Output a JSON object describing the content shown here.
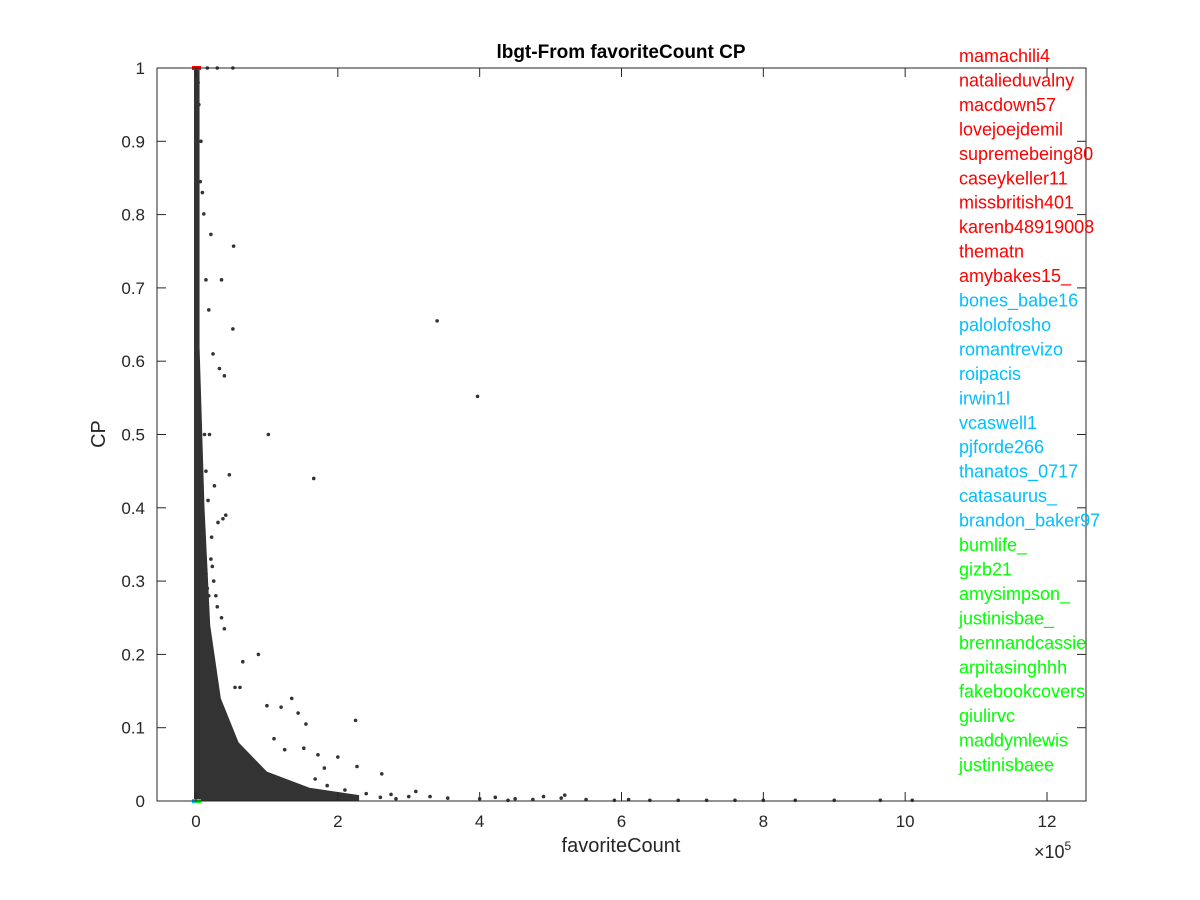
{
  "chart_data": {
    "type": "scatter",
    "title": "lbgt-From favoriteCount CP",
    "xlabel": "favoriteCount",
    "ylabel": "CP",
    "x_multiplier_label": "×10",
    "x_multiplier_exponent": "5",
    "xlim": [
      -55000,
      1255000
    ],
    "ylim": [
      0,
      1
    ],
    "x_ticks": [
      0,
      200000,
      400000,
      600000,
      800000,
      1000000,
      1200000
    ],
    "x_tick_labels": [
      "0",
      "2",
      "4",
      "6",
      "8",
      "10",
      "12"
    ],
    "y_ticks": [
      0,
      0.1,
      0.2,
      0.3,
      0.4,
      0.5,
      0.6,
      0.7,
      0.8,
      0.9,
      1
    ],
    "y_tick_labels": [
      "0",
      "0.1",
      "0.2",
      "0.3",
      "0.4",
      "0.5",
      "0.6",
      "0.7",
      "0.8",
      "0.9",
      "1"
    ],
    "grid": false,
    "marker_color": "#333333",
    "highlight_colors": {
      "top": "#ff0000",
      "middle": "#00bfff",
      "bottom": "#00ff00"
    },
    "series": [
      {
        "points": [
          [
            340000,
            0.655
          ],
          [
            397000,
            0.552
          ],
          [
            102000,
            0.5
          ],
          [
            166000,
            0.44
          ],
          [
            53000,
            0.757
          ],
          [
            36000,
            0.711
          ],
          [
            52000,
            0.644
          ],
          [
            21000,
            0.773
          ],
          [
            11000,
            0.801
          ],
          [
            14000,
            0.711
          ],
          [
            6000,
            0.845
          ],
          [
            7000,
            0.9
          ],
          [
            4000,
            0.95
          ],
          [
            3000,
            0.98
          ],
          [
            52000,
            1.0
          ],
          [
            30000,
            1.0
          ],
          [
            16000,
            1.0
          ],
          [
            9000,
            0.83
          ],
          [
            18000,
            0.67
          ],
          [
            24000,
            0.61
          ],
          [
            33000,
            0.59
          ],
          [
            40000,
            0.58
          ],
          [
            19000,
            0.5
          ],
          [
            12000,
            0.5
          ],
          [
            47000,
            0.445
          ],
          [
            42000,
            0.39
          ],
          [
            38000,
            0.385
          ],
          [
            26000,
            0.43
          ],
          [
            31000,
            0.38
          ],
          [
            22000,
            0.36
          ],
          [
            14000,
            0.45
          ],
          [
            17000,
            0.41
          ],
          [
            225000,
            0.11
          ],
          [
            155000,
            0.105
          ],
          [
            262000,
            0.037
          ],
          [
            227000,
            0.047
          ],
          [
            200000,
            0.06
          ],
          [
            135000,
            0.14
          ],
          [
            144000,
            0.12
          ],
          [
            120000,
            0.128
          ],
          [
            100000,
            0.13
          ],
          [
            88000,
            0.2
          ],
          [
            66000,
            0.19
          ],
          [
            55000,
            0.155
          ],
          [
            62000,
            0.155
          ],
          [
            40000,
            0.235
          ],
          [
            36000,
            0.25
          ],
          [
            30000,
            0.265
          ],
          [
            28000,
            0.28
          ],
          [
            25000,
            0.3
          ],
          [
            23000,
            0.32
          ],
          [
            21000,
            0.33
          ],
          [
            18000,
            0.28
          ],
          [
            16000,
            0.29
          ],
          [
            14000,
            0.31
          ],
          [
            13000,
            0.33
          ],
          [
            110000,
            0.085
          ],
          [
            125000,
            0.07
          ],
          [
            152000,
            0.072
          ],
          [
            172000,
            0.063
          ],
          [
            181000,
            0.045
          ],
          [
            168000,
            0.03
          ],
          [
            185000,
            0.021
          ],
          [
            210000,
            0.015
          ],
          [
            240000,
            0.01
          ],
          [
            275000,
            0.009
          ],
          [
            310000,
            0.013
          ],
          [
            330000,
            0.006
          ],
          [
            355000,
            0.004
          ],
          [
            400000,
            0.003
          ],
          [
            422000,
            0.005
          ],
          [
            450000,
            0.003
          ],
          [
            475000,
            0.002
          ],
          [
            490000,
            0.006
          ],
          [
            515000,
            0.004
          ],
          [
            550000,
            0.002
          ],
          [
            590000,
            0.001
          ],
          [
            610000,
            0.002
          ],
          [
            640000,
            0.001
          ],
          [
            680000,
            0.001
          ],
          [
            720000,
            0.001
          ],
          [
            760000,
            0.001
          ],
          [
            800000,
            0.001
          ],
          [
            845000,
            0.001
          ],
          [
            900000,
            0.001
          ],
          [
            965000,
            0.001
          ],
          [
            1010000,
            0.001
          ],
          [
            440000,
            0.001
          ],
          [
            520000,
            0.008
          ],
          [
            300000,
            0.006
          ],
          [
            282000,
            0.003
          ],
          [
            260000,
            0.005
          ]
        ]
      }
    ],
    "highlighted_users": [
      {
        "name": "mamachili4",
        "color": "#ff0000"
      },
      {
        "name": "natalieduvalny",
        "color": "#ff0000"
      },
      {
        "name": "macdown57",
        "color": "#ff0000"
      },
      {
        "name": "lovejoejdemil",
        "color": "#ff0000"
      },
      {
        "name": "supremebeing80",
        "color": "#ff0000"
      },
      {
        "name": "caseykeller11",
        "color": "#ff0000"
      },
      {
        "name": "missbritish401",
        "color": "#ff0000"
      },
      {
        "name": "karenb48919008",
        "color": "#ff0000"
      },
      {
        "name": "thematn",
        "color": "#ff0000"
      },
      {
        "name": "amybakes15_",
        "color": "#ff0000"
      },
      {
        "name": "bones_babe16",
        "color": "#00bfff"
      },
      {
        "name": "palolofosho",
        "color": "#00bfff"
      },
      {
        "name": "romantrevizo",
        "color": "#00bfff"
      },
      {
        "name": "roipacis",
        "color": "#00bfff"
      },
      {
        "name": "irwin1l",
        "color": "#00bfff"
      },
      {
        "name": "vcaswell1",
        "color": "#00bfff"
      },
      {
        "name": "pjforde266",
        "color": "#00bfff"
      },
      {
        "name": "thanatos_0717",
        "color": "#00bfff"
      },
      {
        "name": "catasaurus_",
        "color": "#00bfff"
      },
      {
        "name": "brandon_baker97",
        "color": "#00bfff"
      },
      {
        "name": "bumlife_",
        "color": "#00ff00"
      },
      {
        "name": "gizb21",
        "color": "#00ff00"
      },
      {
        "name": "amysimpson_",
        "color": "#00ff00"
      },
      {
        "name": "justinisbae_",
        "color": "#00ff00"
      },
      {
        "name": "brennandcassie",
        "color": "#00ff00"
      },
      {
        "name": "arpitasinghhh",
        "color": "#00ff00"
      },
      {
        "name": "fakebookcovers",
        "color": "#00ff00"
      },
      {
        "name": "giulirvc",
        "color": "#00ff00"
      },
      {
        "name": "maddymlewis",
        "color": "#00ff00"
      },
      {
        "name": "justinisbaee",
        "color": "#00ff00"
      }
    ]
  }
}
